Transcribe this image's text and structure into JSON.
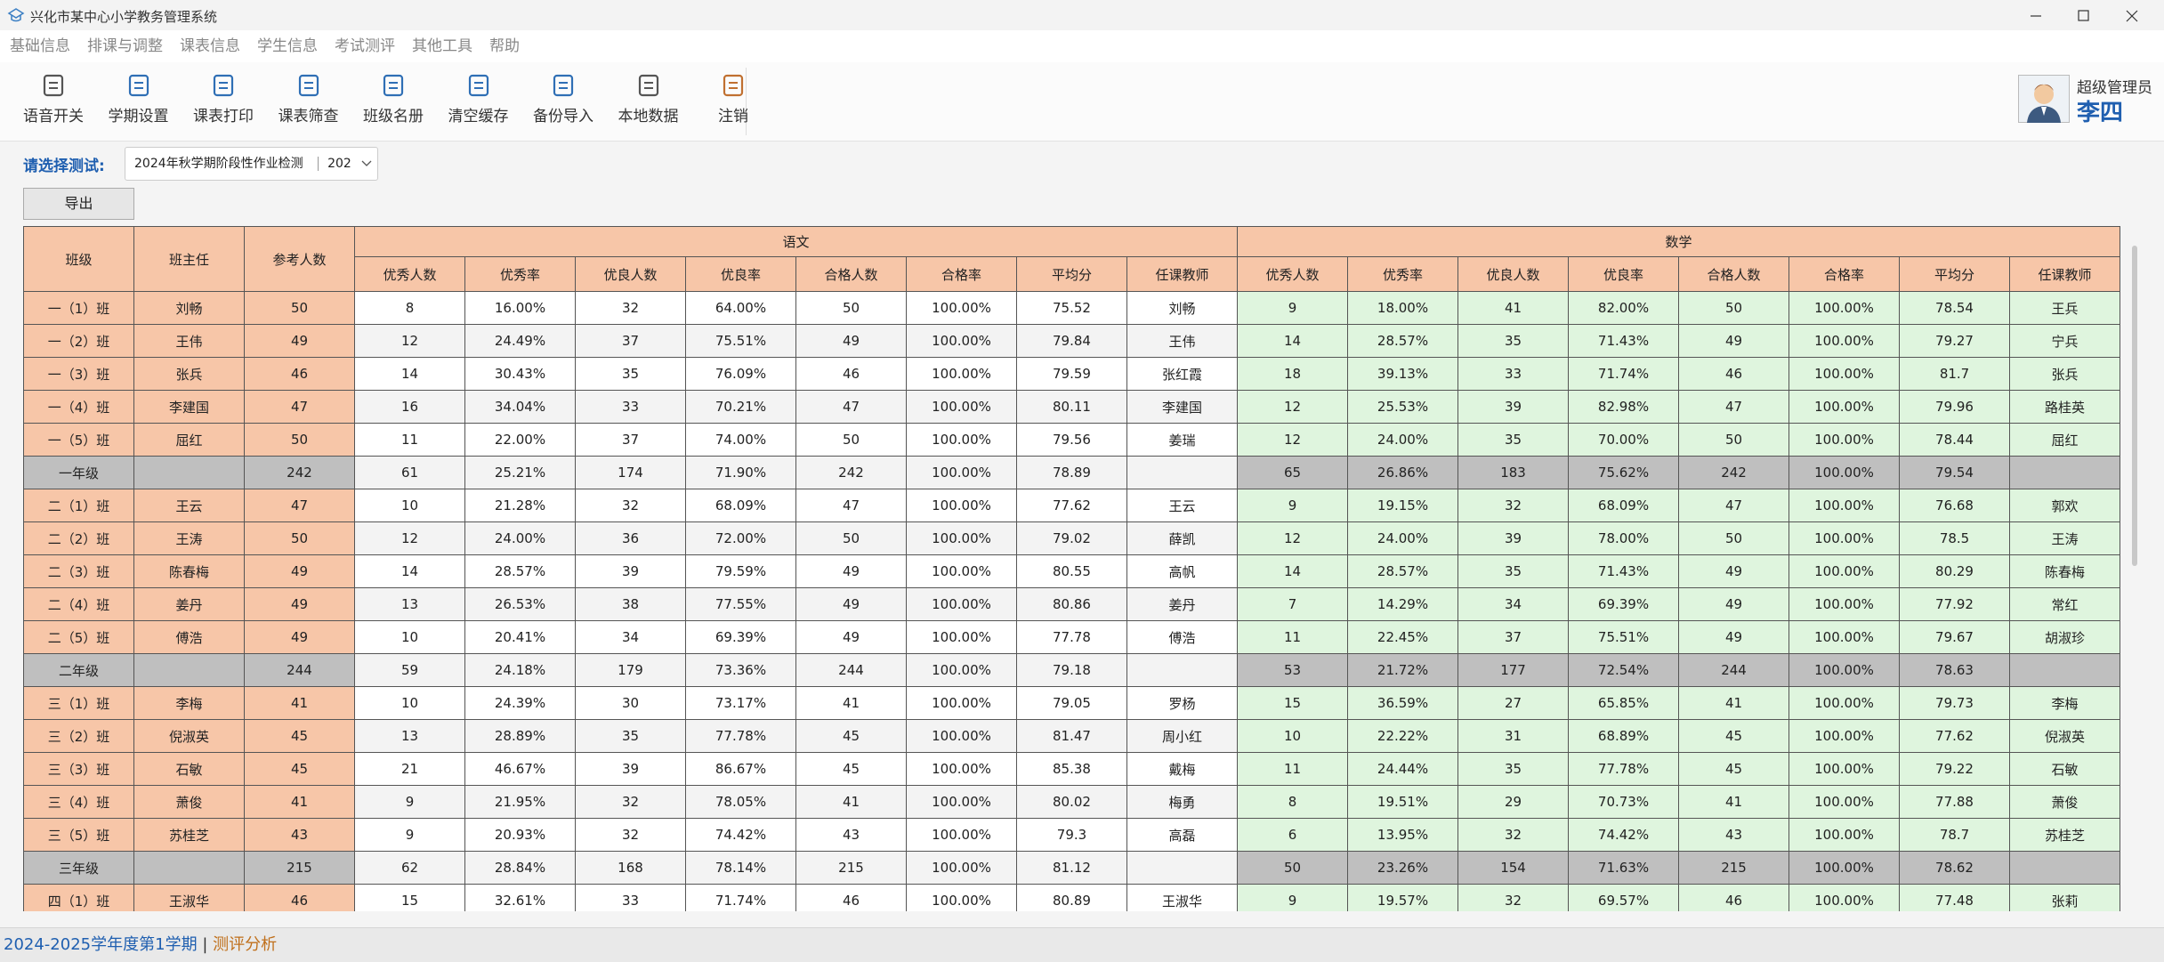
{
  "window": {
    "title": "兴化市某中心小学教务管理系统"
  },
  "menu": [
    "基础信息",
    "排课与调整",
    "课表信息",
    "学生信息",
    "考试测评",
    "其他工具",
    "帮助"
  ],
  "toolbar": [
    "语音开关",
    "学期设置",
    "课表打印",
    "课表筛查",
    "班级名册",
    "清空缓存",
    "备份导入",
    "本地数据",
    "注销"
  ],
  "user": {
    "role": "超级管理员",
    "name": "李四"
  },
  "selector": {
    "label": "请选择测试:",
    "value": "2024年秋学期阶段性作业检测",
    "value2": "202"
  },
  "export_button": "导出",
  "table": {
    "fixed_headers": [
      "班级",
      "班主任",
      "参考人数"
    ],
    "groups": [
      {
        "name": "语文",
        "columns": [
          "优秀人数",
          "优秀率",
          "优良人数",
          "优良率",
          "合格人数",
          "合格率",
          "平均分",
          "任课教师"
        ]
      },
      {
        "name": "数学",
        "columns": [
          "优秀人数",
          "优秀率",
          "优良人数",
          "优良率",
          "合格人数",
          "合格率",
          "平均分",
          "任课教师"
        ]
      }
    ],
    "rows": [
      [
        "一（1）班",
        "刘畅",
        "50",
        "8",
        "16.00%",
        "32",
        "64.00%",
        "50",
        "100.00%",
        "75.52",
        "刘畅",
        "9",
        "18.00%",
        "41",
        "82.00%",
        "50",
        "100.00%",
        "78.54",
        "王兵"
      ],
      [
        "一（2）班",
        "王伟",
        "49",
        "12",
        "24.49%",
        "37",
        "75.51%",
        "49",
        "100.00%",
        "79.84",
        "王伟",
        "14",
        "28.57%",
        "35",
        "71.43%",
        "49",
        "100.00%",
        "79.27",
        "宁兵"
      ],
      [
        "一（3）班",
        "张兵",
        "46",
        "14",
        "30.43%",
        "35",
        "76.09%",
        "46",
        "100.00%",
        "79.59",
        "张红霞",
        "18",
        "39.13%",
        "33",
        "71.74%",
        "46",
        "100.00%",
        "81.7",
        "张兵"
      ],
      [
        "一（4）班",
        "李建国",
        "47",
        "16",
        "34.04%",
        "33",
        "70.21%",
        "47",
        "100.00%",
        "80.11",
        "李建国",
        "12",
        "25.53%",
        "39",
        "82.98%",
        "47",
        "100.00%",
        "79.96",
        "路桂英"
      ],
      [
        "一（5）班",
        "屈红",
        "50",
        "11",
        "22.00%",
        "37",
        "74.00%",
        "50",
        "100.00%",
        "79.56",
        "姜瑞",
        "12",
        "24.00%",
        "35",
        "70.00%",
        "50",
        "100.00%",
        "78.44",
        "屈红"
      ],
      [
        "一年级",
        null,
        "242",
        "61",
        "25.21%",
        "174",
        "71.90%",
        "242",
        "100.00%",
        "78.89",
        null,
        "65",
        "26.86%",
        "183",
        "75.62%",
        "242",
        "100.00%",
        "79.54",
        null
      ],
      [
        "二（1）班",
        "王云",
        "47",
        "10",
        "21.28%",
        "32",
        "68.09%",
        "47",
        "100.00%",
        "77.62",
        "王云",
        "9",
        "19.15%",
        "32",
        "68.09%",
        "47",
        "100.00%",
        "76.68",
        "郭欢"
      ],
      [
        "二（2）班",
        "王涛",
        "50",
        "12",
        "24.00%",
        "36",
        "72.00%",
        "50",
        "100.00%",
        "79.02",
        "薛凯",
        "12",
        "24.00%",
        "39",
        "78.00%",
        "50",
        "100.00%",
        "78.5",
        "王涛"
      ],
      [
        "二（3）班",
        "陈春梅",
        "49",
        "14",
        "28.57%",
        "39",
        "79.59%",
        "49",
        "100.00%",
        "80.55",
        "高帆",
        "14",
        "28.57%",
        "35",
        "71.43%",
        "49",
        "100.00%",
        "80.29",
        "陈春梅"
      ],
      [
        "二（4）班",
        "姜丹",
        "49",
        "13",
        "26.53%",
        "38",
        "77.55%",
        "49",
        "100.00%",
        "80.86",
        "姜丹",
        "7",
        "14.29%",
        "34",
        "69.39%",
        "49",
        "100.00%",
        "77.92",
        "常红"
      ],
      [
        "二（5）班",
        "傅浩",
        "49",
        "10",
        "20.41%",
        "34",
        "69.39%",
        "49",
        "100.00%",
        "77.78",
        "傅浩",
        "11",
        "22.45%",
        "37",
        "75.51%",
        "49",
        "100.00%",
        "79.67",
        "胡淑珍"
      ],
      [
        "二年级",
        null,
        "244",
        "59",
        "24.18%",
        "179",
        "73.36%",
        "244",
        "100.00%",
        "79.18",
        null,
        "53",
        "21.72%",
        "177",
        "72.54%",
        "244",
        "100.00%",
        "78.63",
        null
      ],
      [
        "三（1）班",
        "李梅",
        "41",
        "10",
        "24.39%",
        "30",
        "73.17%",
        "41",
        "100.00%",
        "79.05",
        "罗杨",
        "15",
        "36.59%",
        "27",
        "65.85%",
        "41",
        "100.00%",
        "79.73",
        "李梅"
      ],
      [
        "三（2）班",
        "倪淑英",
        "45",
        "13",
        "28.89%",
        "35",
        "77.78%",
        "45",
        "100.00%",
        "81.47",
        "周小红",
        "10",
        "22.22%",
        "31",
        "68.89%",
        "45",
        "100.00%",
        "77.62",
        "倪淑英"
      ],
      [
        "三（3）班",
        "石敏",
        "45",
        "21",
        "46.67%",
        "39",
        "86.67%",
        "45",
        "100.00%",
        "85.38",
        "戴梅",
        "11",
        "24.44%",
        "35",
        "77.78%",
        "45",
        "100.00%",
        "79.22",
        "石敏"
      ],
      [
        "三（4）班",
        "萧俊",
        "41",
        "9",
        "21.95%",
        "32",
        "78.05%",
        "41",
        "100.00%",
        "80.02",
        "梅勇",
        "8",
        "19.51%",
        "29",
        "70.73%",
        "41",
        "100.00%",
        "77.88",
        "萧俊"
      ],
      [
        "三（5）班",
        "苏桂芝",
        "43",
        "9",
        "20.93%",
        "32",
        "74.42%",
        "43",
        "100.00%",
        "79.3",
        "高磊",
        "6",
        "13.95%",
        "32",
        "74.42%",
        "43",
        "100.00%",
        "78.7",
        "苏桂芝"
      ],
      [
        "三年级",
        null,
        "215",
        "62",
        "28.84%",
        "168",
        "78.14%",
        "215",
        "100.00%",
        "81.12",
        null,
        "50",
        "23.26%",
        "154",
        "71.63%",
        "215",
        "100.00%",
        "78.62",
        null
      ],
      [
        "四（1）班",
        "王淑华",
        "46",
        "15",
        "32.61%",
        "33",
        "71.74%",
        "46",
        "100.00%",
        "80.89",
        "王淑华",
        "9",
        "19.57%",
        "32",
        "69.57%",
        "46",
        "100.00%",
        "77.48",
        "张莉"
      ]
    ]
  },
  "status": {
    "term": "2024-2025学年度第1学期",
    "separator": "|",
    "module": "测评分析"
  }
}
